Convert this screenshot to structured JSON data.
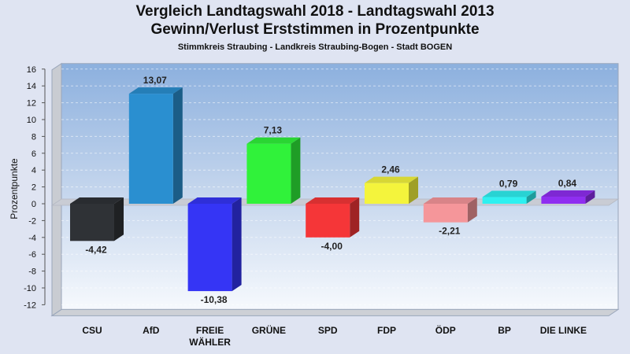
{
  "chart_data": {
    "type": "bar",
    "title": "Vergleich Landtagswahl 2018 - Landtagswahl 2013",
    "subtitle": "Gewinn/Verlust Erststimmen in Prozentpunkte",
    "subtitle2": "Stimmkreis Straubing - Landkreis Straubing-Bogen - Stadt BOGEN",
    "ylabel": "Prozentpunkte",
    "xlabel": "",
    "ylim": [
      -12,
      16
    ],
    "yticks": [
      16,
      14,
      12,
      10,
      8,
      6,
      4,
      2,
      0,
      -2,
      -4,
      -6,
      -8,
      -10,
      -12
    ],
    "grid": true,
    "categories": [
      "CSU",
      "AfD",
      "FREIE\nWÄHLER",
      "GRÜNE",
      "SPD",
      "FDP",
      "ÖDP",
      "BP",
      "DIE LINKE"
    ],
    "values": [
      -4.42,
      13.07,
      -10.38,
      7.13,
      -4.0,
      2.46,
      -2.21,
      0.79,
      0.84
    ],
    "value_labels": [
      "-4,42",
      "13,07",
      "-10,38",
      "7,13",
      "-4,00",
      "2,46",
      "-2,21",
      "0,79",
      "0,84"
    ],
    "colors": [
      "#2f3236",
      "#2a8fd0",
      "#3535f5",
      "#30f23a",
      "#f53638",
      "#f4f43c",
      "#f5969a",
      "#2ef0f0",
      "#8f2ef0"
    ]
  }
}
